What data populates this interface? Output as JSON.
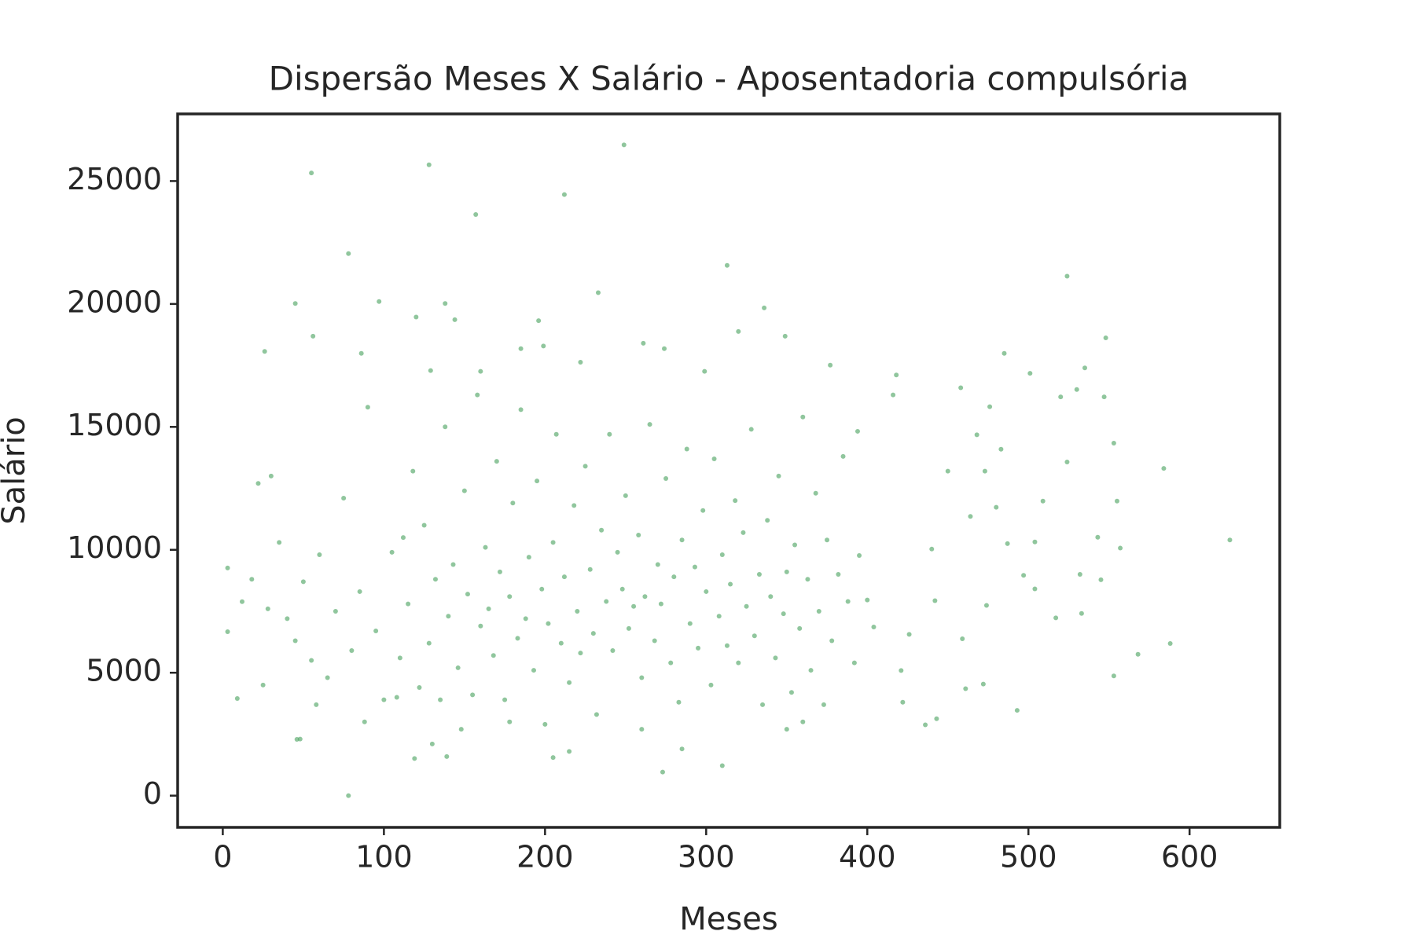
{
  "chart_data": {
    "type": "scatter",
    "title": "Dispersão Meses X Salário - Aposentadoria compulsória",
    "x_label": "Meses",
    "y_label": "Salário",
    "color": "#55a868",
    "xlim": [
      -28,
      656
    ],
    "ylim": [
      -1290,
      27730
    ],
    "xticks": [
      0,
      100,
      200,
      300,
      400,
      500,
      600
    ],
    "yticks": [
      0,
      5000,
      10000,
      15000,
      20000,
      25000
    ],
    "x": [
      249,
      128,
      55,
      212,
      157,
      78,
      313,
      524,
      233,
      45,
      97,
      138,
      120,
      336,
      196,
      144,
      26,
      56,
      86,
      185,
      199,
      261,
      274,
      320,
      349,
      548,
      485,
      501,
      418,
      377,
      535,
      129,
      160,
      222,
      299,
      584,
      625,
      588,
      568,
      553,
      493,
      443,
      436,
      78,
      273,
      310,
      205,
      119,
      139,
      46,
      9,
      3,
      3,
      12,
      404,
      400,
      395,
      394,
      416,
      440,
      458,
      468,
      476,
      520,
      524,
      480,
      509,
      555,
      543,
      557,
      532,
      545,
      533,
      517,
      504,
      497,
      474,
      459,
      461,
      472,
      442,
      426,
      421,
      422,
      504,
      487,
      464,
      450,
      473,
      483,
      547,
      530,
      553,
      30,
      35,
      40,
      45,
      50,
      55,
      60,
      65,
      70,
      75,
      80,
      85,
      90,
      95,
      100,
      105,
      110,
      112,
      115,
      118,
      122,
      125,
      128,
      132,
      135,
      138,
      140,
      143,
      146,
      150,
      152,
      155,
      158,
      160,
      163,
      165,
      168,
      170,
      172,
      175,
      178,
      180,
      183,
      185,
      188,
      190,
      193,
      195,
      198,
      200,
      202,
      205,
      207,
      210,
      212,
      215,
      218,
      220,
      222,
      225,
      228,
      230,
      232,
      235,
      238,
      240,
      242,
      245,
      248,
      250,
      252,
      255,
      258,
      260,
      262,
      265,
      268,
      270,
      272,
      275,
      278,
      280,
      283,
      285,
      288,
      290,
      293,
      295,
      298,
      300,
      303,
      305,
      308,
      310,
      313,
      315,
      318,
      320,
      323,
      325,
      328,
      330,
      333,
      335,
      338,
      340,
      343,
      345,
      348,
      350,
      353,
      355,
      358,
      360,
      363,
      365,
      368,
      370,
      373,
      375,
      378,
      382,
      385,
      388,
      392,
      25,
      28,
      18,
      22,
      48,
      58,
      88,
      108,
      130,
      148,
      178,
      215,
      260,
      285,
      350,
      360
    ],
    "y": [
      26470,
      25660,
      25330,
      24450,
      23640,
      22050,
      21570,
      21130,
      20460,
      20020,
      20100,
      20020,
      19470,
      19840,
      19320,
      19360,
      18070,
      18690,
      17990,
      18180,
      18290,
      18400,
      18180,
      18880,
      18690,
      18620,
      17990,
      17180,
      17110,
      17510,
      17400,
      17290,
      17260,
      17630,
      17260,
      13310,
      10400,
      6190,
      5750,
      4870,
      3470,
      3130,
      2880,
      0,
      960,
      1220,
      1550,
      1510,
      1590,
      2290,
      3950,
      6670,
      9260,
      7890,
      6860,
      7960,
      9770,
      14820,
      16300,
      10030,
      16590,
      14680,
      15820,
      16220,
      13570,
      11730,
      11980,
      11980,
      10510,
      10070,
      9000,
      8780,
      7410,
      7230,
      8410,
      8960,
      7740,
      6380,
      4350,
      4540,
      7930,
      6560,
      5090,
      3800,
      10320,
      10250,
      11360,
      13200,
      13200,
      14090,
      16220,
      16520,
      14340,
      13000,
      10300,
      7200,
      6300,
      8700,
      5500,
      9800,
      4800,
      7500,
      12100,
      5900,
      8300,
      15800,
      6700,
      3900,
      9900,
      5600,
      10500,
      7800,
      13200,
      4400,
      11000,
      6200,
      8800,
      3900,
      15000,
      7300,
      9400,
      5200,
      12400,
      8200,
      4100,
      16300,
      6900,
      10100,
      7600,
      5700,
      13600,
      9100,
      3900,
      8100,
      11900,
      6400,
      15700,
      7200,
      9700,
      5100,
      12800,
      8400,
      2900,
      7000,
      10300,
      14700,
      6200,
      8900,
      4600,
      11800,
      7500,
      5800,
      13400,
      9200,
      6600,
      3300,
      10800,
      7900,
      14700,
      5900,
      9900,
      8400,
      12200,
      6800,
      7700,
      10600,
      4800,
      8100,
      15100,
      6300,
      9400,
      7800,
      12900,
      5400,
      8900,
      3800,
      10400,
      14100,
      7000,
      9300,
      6000,
      11600,
      8300,
      4500,
      13700,
      7300,
      9800,
      6100,
      8600,
      12000,
      5400,
      10700,
      7700,
      14900,
      6500,
      9000,
      3700,
      11200,
      8100,
      5600,
      13000,
      7400,
      9100,
      4200,
      10200,
      6800,
      15400,
      8800,
      5100,
      12300,
      7500,
      3700,
      10400,
      6300,
      9000,
      13800,
      7900,
      5400,
      4500,
      7600,
      8800,
      12700,
      2300,
      3700,
      3000,
      4000,
      2100,
      2700,
      3000,
      1800,
      2700,
      1900,
      2700,
      3000
    ]
  }
}
